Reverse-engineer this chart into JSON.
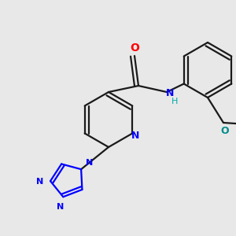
{
  "bg_color": "#e8e8e8",
  "bond_color": "#1a1a1a",
  "N_color": "#0000ff",
  "O_color": "#ff0000",
  "O_teal_color": "#008b8b",
  "line_width": 1.6,
  "figsize": [
    3.0,
    3.0
  ],
  "dpi": 100,
  "xlim": [
    0,
    300
  ],
  "ylim": [
    0,
    300
  ]
}
